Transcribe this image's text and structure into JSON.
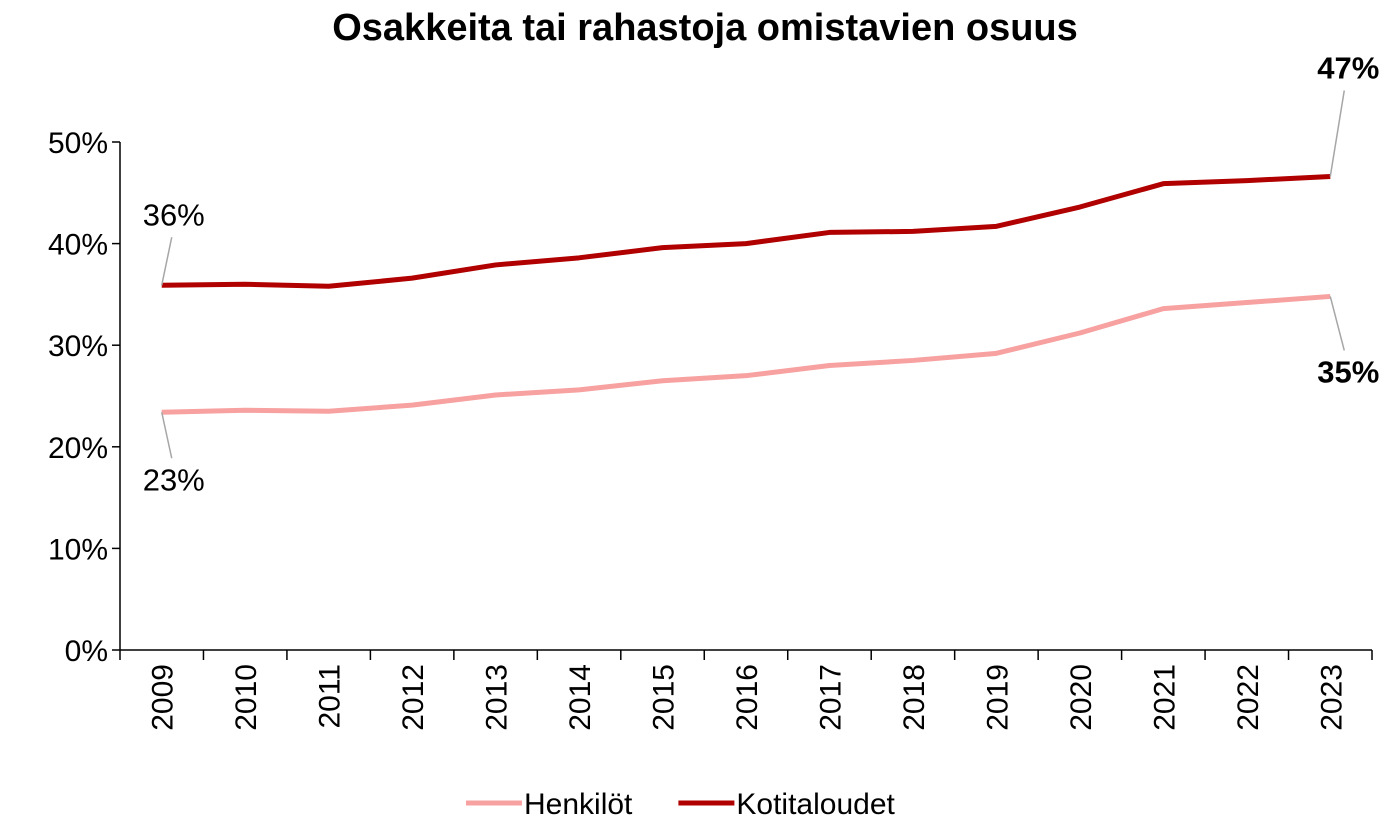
{
  "chart_data": {
    "type": "line",
    "title": "Osakkeita tai rahastoja omistavien osuus",
    "categories": [
      "2009",
      "2010",
      "2011",
      "2012",
      "2013",
      "2014",
      "2015",
      "2016",
      "2017",
      "2018",
      "2019",
      "2020",
      "2021",
      "2022",
      "2023"
    ],
    "series": [
      {
        "name": "Henkilöt",
        "color": "#f7a1a1",
        "values": [
          23.4,
          23.6,
          23.5,
          24.1,
          25.1,
          25.6,
          26.5,
          27.0,
          28.0,
          28.5,
          29.2,
          31.2,
          33.6,
          34.2,
          34.8
        ],
        "value_labels": [
          "23%",
          null,
          null,
          null,
          null,
          null,
          null,
          null,
          null,
          null,
          null,
          null,
          null,
          null,
          "35%"
        ]
      },
      {
        "name": "Kotitaloudet",
        "color": "#b00000",
        "values": [
          35.9,
          36.0,
          35.8,
          36.6,
          37.9,
          38.6,
          39.6,
          40.0,
          41.1,
          41.2,
          41.7,
          43.6,
          45.9,
          46.2,
          46.6
        ],
        "value_labels": [
          "36%",
          null,
          null,
          null,
          null,
          null,
          null,
          null,
          null,
          null,
          null,
          null,
          null,
          null,
          "47%"
        ]
      }
    ],
    "ylim": [
      0,
      50
    ],
    "yticks": [
      {
        "value": 0,
        "label": "0%"
      },
      {
        "value": 10,
        "label": "10%"
      },
      {
        "value": 20,
        "label": "20%"
      },
      {
        "value": 30,
        "label": "30%"
      },
      {
        "value": 40,
        "label": "40%"
      },
      {
        "value": 50,
        "label": "50%"
      }
    ],
    "grid": false,
    "legend": "bottom"
  }
}
